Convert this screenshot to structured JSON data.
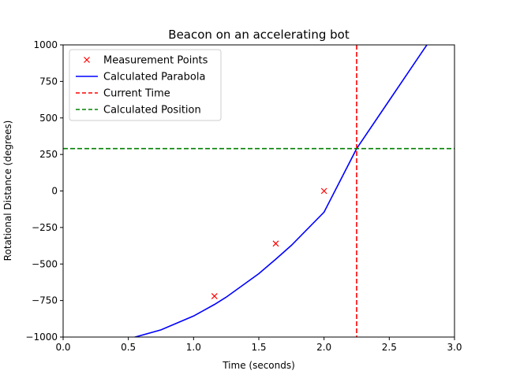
{
  "chart_data": {
    "type": "line",
    "title": "Beacon on an accelerating bot",
    "xlabel": "Time (seconds)",
    "ylabel": "Rotational Distance (degrees)",
    "xlim": [
      0.0,
      3.0
    ],
    "ylim": [
      -1000,
      1000
    ],
    "xticks": [
      0.0,
      0.5,
      1.0,
      1.5,
      2.0,
      2.5,
      3.0
    ],
    "xtick_labels": [
      "0.0",
      "0.5",
      "1.0",
      "1.5",
      "2.0",
      "2.5",
      "3.0"
    ],
    "yticks": [
      -1000,
      -750,
      -500,
      -250,
      0,
      250,
      500,
      750,
      1000
    ],
    "ytick_labels": [
      "−1000",
      "−750",
      "−500",
      "−250",
      "0",
      "250",
      "500",
      "750",
      "1000"
    ],
    "grid": false,
    "legend_position": "top-left",
    "series": [
      {
        "name": "Measurement Points",
        "kind": "scatter",
        "marker": "x",
        "color": "#ff0000",
        "x": [
          1.16,
          1.63,
          2.0
        ],
        "y": [
          -720,
          -360,
          0
        ]
      },
      {
        "name": "Calculated Parabola",
        "kind": "line",
        "style": "solid",
        "color": "#0000ff",
        "x": [
          0.5,
          0.75,
          1.0,
          1.16,
          1.25,
          1.5,
          1.63,
          1.75,
          2.0,
          2.25,
          2.5,
          2.75,
          2.8
        ],
        "y": [
          -1013,
          -951,
          -856,
          -777,
          -727,
          -566,
          -467,
          -372,
          -145,
          290,
          620,
          950,
          1015
        ]
      },
      {
        "name": "Current Time",
        "kind": "vline",
        "style": "dashed",
        "color": "#ff0000",
        "x": 2.25
      },
      {
        "name": "Calculated Position",
        "kind": "hline",
        "style": "dashed",
        "color": "#008000",
        "y": 290
      }
    ]
  }
}
